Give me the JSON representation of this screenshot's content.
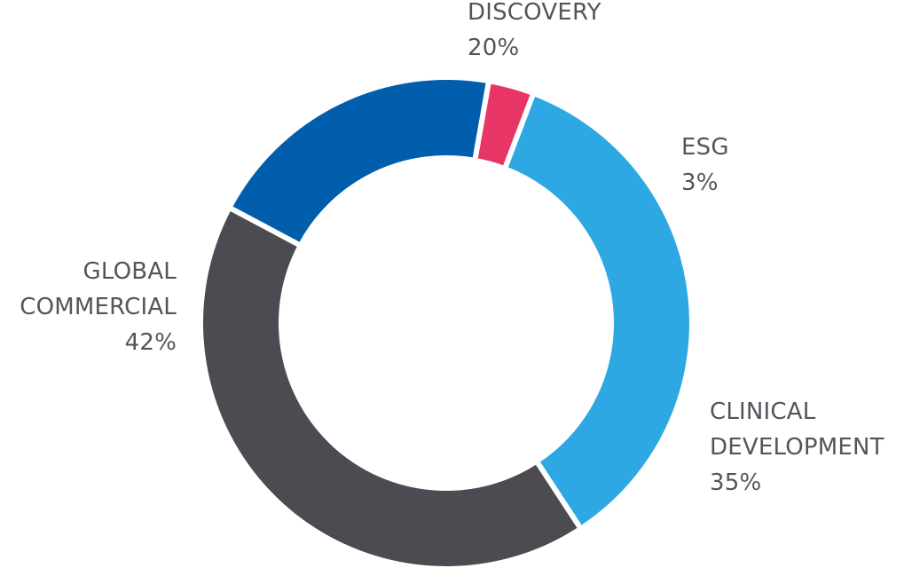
{
  "chart_data": {
    "type": "pie",
    "variant": "donut",
    "title": "",
    "slices": [
      {
        "name": "DISCOVERY",
        "label_lines": [
          "DISCOVERY"
        ],
        "value": 20,
        "value_label": "20%",
        "color": "#005eac"
      },
      {
        "name": "ESG",
        "label_lines": [
          "ESG"
        ],
        "value": 3,
        "value_label": "3%",
        "color": "#e73565"
      },
      {
        "name": "CLINICAL DEVELOPMENT",
        "label_lines": [
          "CLINICAL",
          "DEVELOPMENT"
        ],
        "value": 35,
        "value_label": "35%",
        "color": "#2da8e2"
      },
      {
        "name": "GLOBAL COMMERCIAL",
        "label_lines": [
          "GLOBAL",
          "COMMERCIAL"
        ],
        "value": 42,
        "value_label": "42%",
        "color": "#4c4b52"
      }
    ],
    "label_color": "#55545c",
    "background": "#ffffff"
  }
}
